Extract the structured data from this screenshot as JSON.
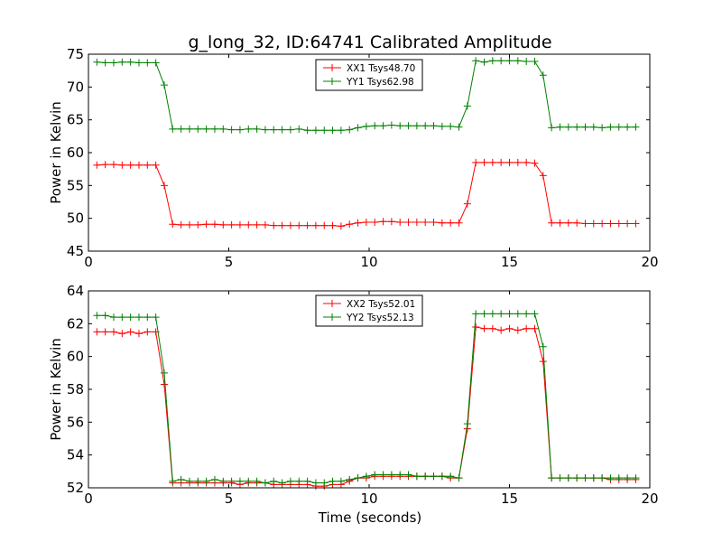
{
  "chart_data": [
    {
      "type": "line",
      "title": "g_long_32, ID:64741 Calibrated Amplitude",
      "xlabel": "",
      "ylabel": "Power in Kelvin",
      "xlim": [
        0,
        20
      ],
      "ylim": [
        45,
        75
      ],
      "xticks": [
        "0",
        "5",
        "10",
        "15",
        "20"
      ],
      "yticks": [
        "45",
        "50",
        "55",
        "60",
        "65",
        "70",
        "75"
      ],
      "legend_position": "top-center",
      "grid": false,
      "series": [
        {
          "name": "XX1 Tsys48.70",
          "color": "#ff0000",
          "x": [
            0.3,
            0.6,
            0.9,
            1.2,
            1.5,
            1.8,
            2.1,
            2.4,
            2.7,
            3.0,
            3.3,
            3.6,
            3.9,
            4.2,
            4.5,
            4.8,
            5.1,
            5.4,
            5.7,
            6.0,
            6.3,
            6.6,
            6.9,
            7.2,
            7.5,
            7.8,
            8.1,
            8.4,
            8.7,
            9.0,
            9.3,
            9.6,
            9.9,
            10.2,
            10.5,
            10.8,
            11.1,
            11.4,
            11.7,
            12.0,
            12.3,
            12.6,
            12.9,
            13.2,
            13.5,
            13.8,
            14.1,
            14.4,
            14.7,
            15.0,
            15.3,
            15.6,
            15.9,
            16.2,
            16.5,
            16.8,
            17.1,
            17.4,
            17.7,
            18.0,
            18.3,
            18.6,
            18.9,
            19.2,
            19.5
          ],
          "values": [
            58.1,
            58.2,
            58.2,
            58.1,
            58.1,
            58.1,
            58.1,
            58.1,
            55.0,
            49.1,
            49.0,
            49.0,
            49.0,
            49.1,
            49.1,
            49.0,
            49.0,
            49.0,
            49.0,
            49.0,
            49.0,
            48.9,
            48.9,
            48.9,
            48.9,
            48.9,
            48.9,
            48.9,
            48.9,
            48.8,
            49.1,
            49.3,
            49.4,
            49.4,
            49.5,
            49.5,
            49.4,
            49.4,
            49.4,
            49.4,
            49.4,
            49.3,
            49.3,
            49.3,
            52.2,
            58.5,
            58.5,
            58.5,
            58.5,
            58.5,
            58.5,
            58.5,
            58.4,
            56.5,
            49.3,
            49.3,
            49.3,
            49.3,
            49.2,
            49.2,
            49.2,
            49.2,
            49.2,
            49.2,
            49.2
          ]
        },
        {
          "name": "YY1 Tsys62.98",
          "color": "#008000",
          "x": [
            0.3,
            0.6,
            0.9,
            1.2,
            1.5,
            1.8,
            2.1,
            2.4,
            2.7,
            3.0,
            3.3,
            3.6,
            3.9,
            4.2,
            4.5,
            4.8,
            5.1,
            5.4,
            5.7,
            6.0,
            6.3,
            6.6,
            6.9,
            7.2,
            7.5,
            7.8,
            8.1,
            8.4,
            8.7,
            9.0,
            9.3,
            9.6,
            9.9,
            10.2,
            10.5,
            10.8,
            11.1,
            11.4,
            11.7,
            12.0,
            12.3,
            12.6,
            12.9,
            13.2,
            13.5,
            13.8,
            14.1,
            14.4,
            14.7,
            15.0,
            15.3,
            15.6,
            15.9,
            16.2,
            16.5,
            16.8,
            17.1,
            17.4,
            17.7,
            18.0,
            18.3,
            18.6,
            18.9,
            19.2,
            19.5
          ],
          "values": [
            73.8,
            73.7,
            73.7,
            73.8,
            73.8,
            73.7,
            73.7,
            73.7,
            70.3,
            63.6,
            63.6,
            63.6,
            63.6,
            63.6,
            63.6,
            63.6,
            63.5,
            63.5,
            63.6,
            63.6,
            63.5,
            63.5,
            63.5,
            63.5,
            63.6,
            63.4,
            63.4,
            63.4,
            63.4,
            63.4,
            63.5,
            63.8,
            64.0,
            64.1,
            64.1,
            64.2,
            64.1,
            64.1,
            64.1,
            64.1,
            64.1,
            64.0,
            64.0,
            63.9,
            67.1,
            74.0,
            73.8,
            74.0,
            74.0,
            74.0,
            74.0,
            73.9,
            73.9,
            71.8,
            63.8,
            63.9,
            63.9,
            63.9,
            63.9,
            63.9,
            63.8,
            63.9,
            63.9,
            63.9,
            63.9
          ]
        }
      ]
    },
    {
      "type": "line",
      "title": "",
      "xlabel": "Time (seconds)",
      "ylabel": "Power in Kelvin",
      "xlim": [
        0,
        20
      ],
      "ylim": [
        52,
        64
      ],
      "xticks": [
        "0",
        "5",
        "10",
        "15",
        "20"
      ],
      "yticks": [
        "52",
        "54",
        "56",
        "58",
        "60",
        "62",
        "64"
      ],
      "legend_position": "top-center",
      "grid": false,
      "series": [
        {
          "name": "XX2 Tsys52.01",
          "color": "#ff0000",
          "x": [
            0.3,
            0.6,
            0.9,
            1.2,
            1.5,
            1.8,
            2.1,
            2.4,
            2.7,
            3.0,
            3.3,
            3.6,
            3.9,
            4.2,
            4.5,
            4.8,
            5.1,
            5.4,
            5.7,
            6.0,
            6.3,
            6.6,
            6.9,
            7.2,
            7.5,
            7.8,
            8.1,
            8.4,
            8.7,
            9.0,
            9.3,
            9.6,
            9.9,
            10.2,
            10.5,
            10.8,
            11.1,
            11.4,
            11.7,
            12.0,
            12.3,
            12.6,
            12.9,
            13.2,
            13.5,
            13.8,
            14.1,
            14.4,
            14.7,
            15.0,
            15.3,
            15.6,
            15.9,
            16.2,
            16.5,
            16.8,
            17.1,
            17.4,
            17.7,
            18.0,
            18.3,
            18.6,
            18.9,
            19.2,
            19.5
          ],
          "values": [
            61.5,
            61.5,
            61.5,
            61.4,
            61.5,
            61.4,
            61.5,
            61.5,
            58.3,
            52.3,
            52.3,
            52.3,
            52.3,
            52.3,
            52.3,
            52.3,
            52.3,
            52.2,
            52.3,
            52.3,
            52.3,
            52.2,
            52.2,
            52.2,
            52.2,
            52.2,
            52.1,
            52.1,
            52.2,
            52.2,
            52.4,
            52.6,
            52.6,
            52.7,
            52.7,
            52.7,
            52.7,
            52.7,
            52.7,
            52.7,
            52.7,
            52.7,
            52.6,
            52.6,
            55.6,
            61.8,
            61.7,
            61.7,
            61.6,
            61.7,
            61.6,
            61.7,
            61.7,
            59.7,
            52.6,
            52.6,
            52.6,
            52.6,
            52.6,
            52.6,
            52.6,
            52.5,
            52.5,
            52.5,
            52.5
          ]
        },
        {
          "name": "YY2 Tsys52.13",
          "color": "#008000",
          "x": [
            0.3,
            0.6,
            0.9,
            1.2,
            1.5,
            1.8,
            2.1,
            2.4,
            2.7,
            3.0,
            3.3,
            3.6,
            3.9,
            4.2,
            4.5,
            4.8,
            5.1,
            5.4,
            5.7,
            6.0,
            6.3,
            6.6,
            6.9,
            7.2,
            7.5,
            7.8,
            8.1,
            8.4,
            8.7,
            9.0,
            9.3,
            9.6,
            9.9,
            10.2,
            10.5,
            10.8,
            11.1,
            11.4,
            11.7,
            12.0,
            12.3,
            12.6,
            12.9,
            13.2,
            13.5,
            13.8,
            14.1,
            14.4,
            14.7,
            15.0,
            15.3,
            15.6,
            15.9,
            16.2,
            16.5,
            16.8,
            17.1,
            17.4,
            17.7,
            18.0,
            18.3,
            18.6,
            18.9,
            19.2,
            19.5
          ],
          "values": [
            62.5,
            62.5,
            62.4,
            62.4,
            62.4,
            62.4,
            62.4,
            62.4,
            59.0,
            52.4,
            52.5,
            52.4,
            52.4,
            52.4,
            52.5,
            52.4,
            52.4,
            52.4,
            52.4,
            52.4,
            52.3,
            52.4,
            52.3,
            52.4,
            52.4,
            52.4,
            52.3,
            52.3,
            52.4,
            52.4,
            52.5,
            52.6,
            52.7,
            52.8,
            52.8,
            52.8,
            52.8,
            52.8,
            52.7,
            52.7,
            52.7,
            52.7,
            52.7,
            52.6,
            55.9,
            62.6,
            62.6,
            62.6,
            62.6,
            62.6,
            62.6,
            62.6,
            62.6,
            60.6,
            52.6,
            52.6,
            52.6,
            52.6,
            52.6,
            52.6,
            52.6,
            52.6,
            52.6,
            52.6,
            52.6
          ]
        }
      ]
    }
  ]
}
